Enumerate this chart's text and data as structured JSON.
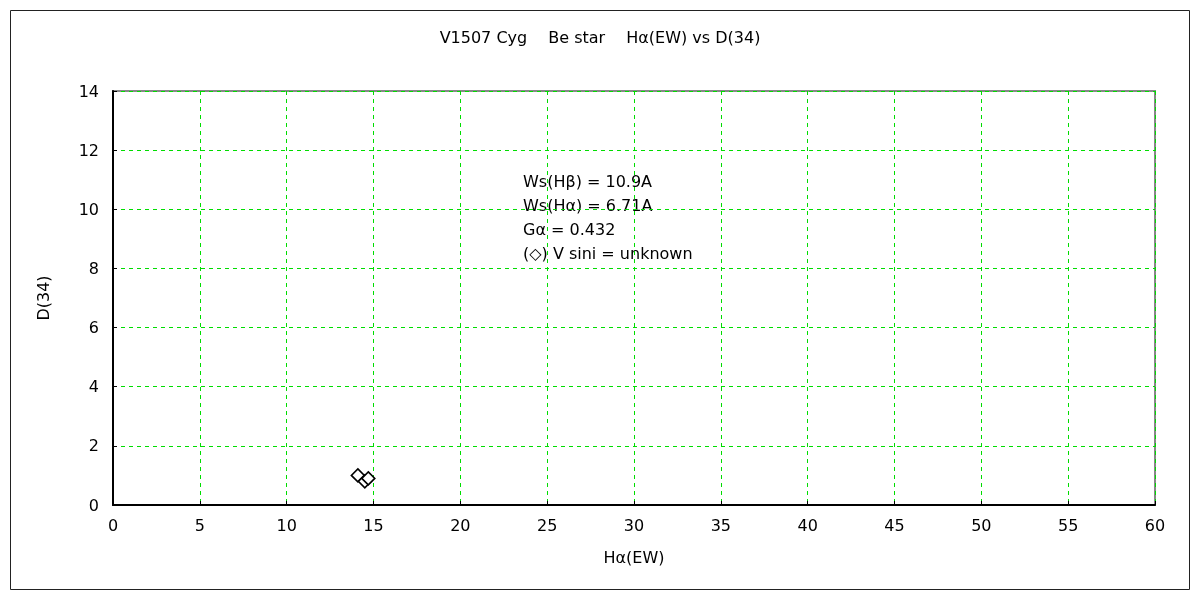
{
  "chart_data": {
    "type": "scatter",
    "title": "V1507 Cyg　 Be star　 Hα(EW) vs D(34)",
    "xlabel": "Hα(EW)",
    "ylabel": "D(34)",
    "annotations": [
      "Ws(Hβ) = 10.9A",
      "Ws(Hα) = 6.71A",
      "Gα = 0.432",
      "(◇) V sini = unknown"
    ],
    "x": [
      14.1,
      14.5,
      14.7
    ],
    "values": [
      1.0,
      0.8,
      0.9
    ],
    "color": "#000000",
    "marker": "diamond",
    "xlim": [
      0,
      60
    ],
    "xticks": [
      0,
      5,
      10,
      15,
      20,
      25,
      30,
      35,
      40,
      45,
      50,
      55,
      60
    ],
    "ylim": [
      0,
      14
    ],
    "yticks": [
      0,
      2,
      4,
      6,
      8,
      10,
      12,
      14
    ],
    "grid": true
  }
}
